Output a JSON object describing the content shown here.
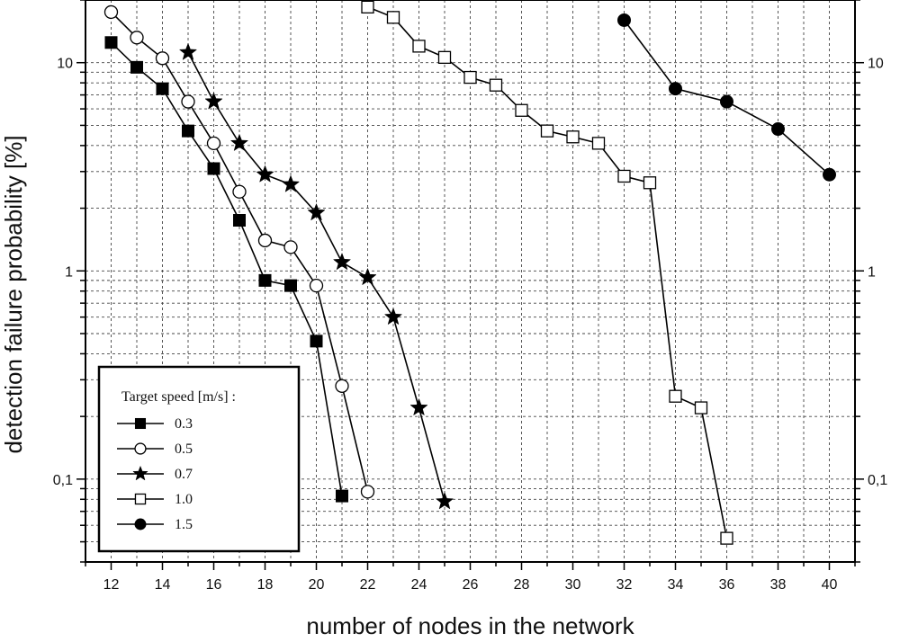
{
  "chart_data": {
    "type": "line",
    "title": "",
    "xlabel": "number of nodes in the network",
    "ylabel": "detection failure probability [%]",
    "xlim": [
      11,
      41
    ],
    "ylim": [
      0.04,
      20
    ],
    "yscale": "log",
    "grid": true,
    "x_ticks": [
      12,
      14,
      16,
      18,
      20,
      22,
      24,
      26,
      28,
      30,
      32,
      34,
      36,
      38,
      40
    ],
    "y_ticks": [
      {
        "value": 0.1,
        "label": "0,1"
      },
      {
        "value": 1,
        "label": "1"
      },
      {
        "value": 10,
        "label": "10"
      }
    ],
    "legend": {
      "title": "Target speed [m/s] :",
      "position": "bottom-left"
    },
    "series": [
      {
        "name": "0.3",
        "marker": "filled-square",
        "x": [
          12,
          13,
          14,
          15,
          16,
          17,
          18,
          19,
          20,
          21
        ],
        "y": [
          12.5,
          9.5,
          7.5,
          4.7,
          3.1,
          1.75,
          0.9,
          0.85,
          0.46,
          0.083
        ]
      },
      {
        "name": "0.5",
        "marker": "open-circle",
        "x": [
          12,
          13,
          14,
          15,
          16,
          17,
          18,
          19,
          20,
          21,
          22
        ],
        "y": [
          17.5,
          13.2,
          10.5,
          6.5,
          4.1,
          2.4,
          1.4,
          1.3,
          0.85,
          0.28,
          0.087
        ]
      },
      {
        "name": "0.7",
        "marker": "filled-star",
        "x": [
          15,
          16,
          17,
          18,
          19,
          20,
          21,
          22,
          23,
          24,
          25
        ],
        "y": [
          11.2,
          6.5,
          4.1,
          2.9,
          2.6,
          1.9,
          1.1,
          0.93,
          0.6,
          0.22,
          0.078
        ]
      },
      {
        "name": "1.0",
        "marker": "open-square",
        "x": [
          22,
          23,
          24,
          25,
          26,
          27,
          28,
          29,
          30,
          31,
          32,
          33,
          34,
          35,
          36
        ],
        "y": [
          18.5,
          16.5,
          12.0,
          10.6,
          8.5,
          7.8,
          5.9,
          4.7,
          4.4,
          4.1,
          2.85,
          2.65,
          0.25,
          0.22,
          0.052
        ]
      },
      {
        "name": "1.5",
        "marker": "filled-circle",
        "x": [
          32,
          34,
          36,
          38,
          40
        ],
        "y": [
          16.0,
          7.5,
          6.5,
          4.8,
          2.9
        ]
      }
    ]
  }
}
